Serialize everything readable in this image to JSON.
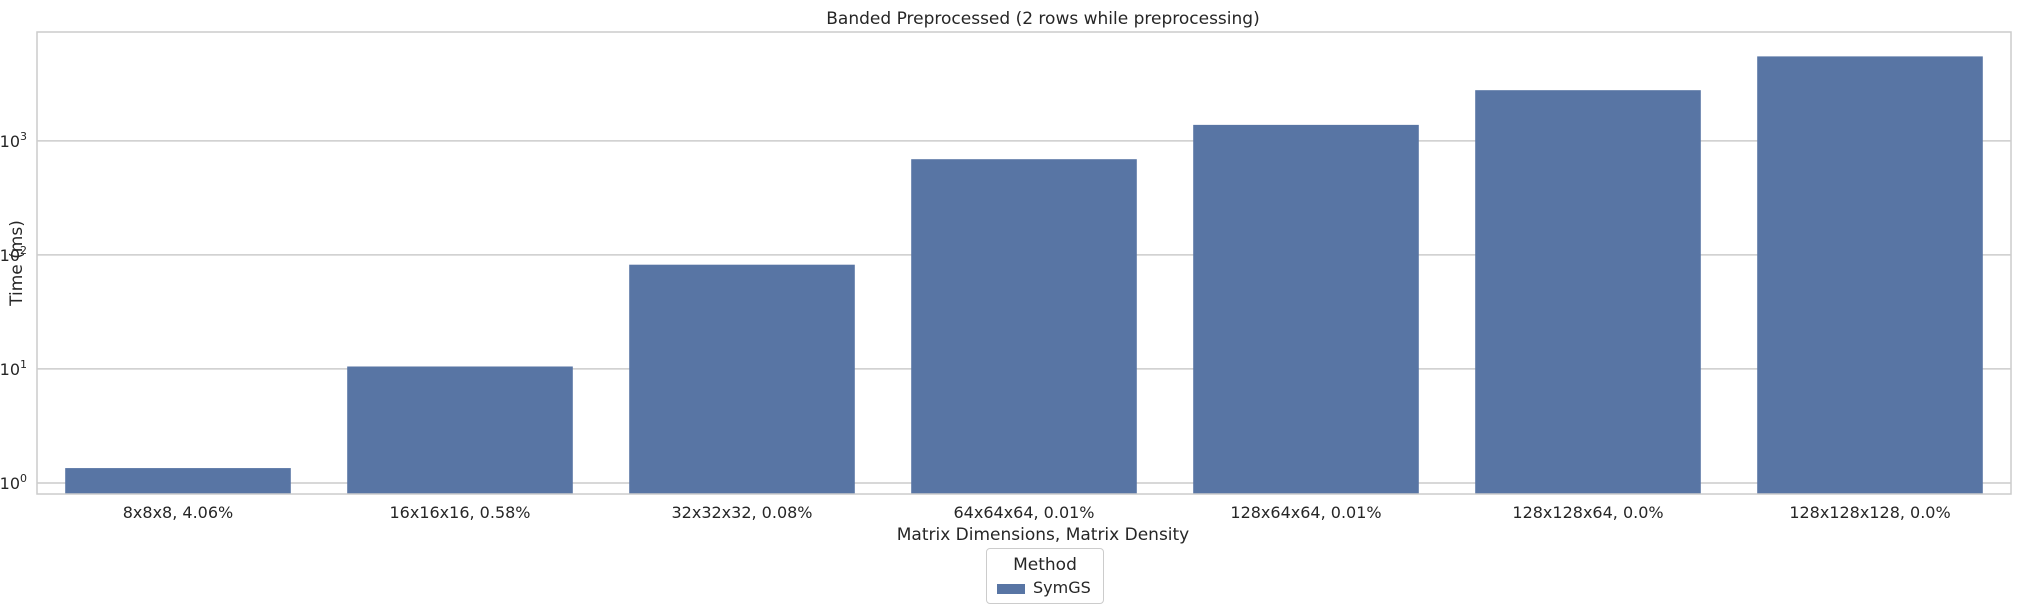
{
  "chart_data": {
    "type": "bar",
    "title": "Banded Preprocessed (2 rows while preprocessing)",
    "xlabel": "Matrix Dimensions, Matrix Density",
    "ylabel": "Time (ms)",
    "yscale": "log",
    "ylim": [
      0.8,
      9000
    ],
    "yticks": [
      1,
      10,
      100,
      1000
    ],
    "ytick_labels": [
      {
        "base": "10",
        "exp": "0"
      },
      {
        "base": "10",
        "exp": "1"
      },
      {
        "base": "10",
        "exp": "2"
      },
      {
        "base": "10",
        "exp": "3"
      }
    ],
    "categories": [
      "8x8x8, 4.06%",
      "16x16x16, 0.58%",
      "32x32x32, 0.08%",
      "64x64x64, 0.01%",
      "128x64x64, 0.01%",
      "128x128x64, 0.0%",
      "128x128x128, 0.0%"
    ],
    "series": [
      {
        "name": "SymGS",
        "color": "#5875a4",
        "values": [
          1.35,
          10.5,
          82,
          690,
          1380,
          2780,
          5500
        ]
      }
    ],
    "grid": true,
    "legend": {
      "title": "Method",
      "placement": "bottom-center"
    }
  }
}
